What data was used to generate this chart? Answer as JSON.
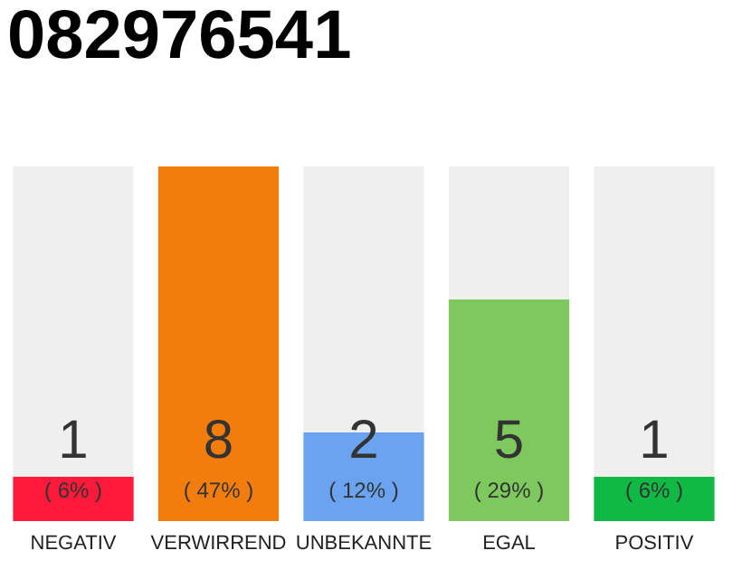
{
  "chart_data": {
    "type": "bar",
    "title": "082976541",
    "categories": [
      "NEGATIV",
      "VERWIRREND",
      "UNBEKANNTE",
      "EGAL",
      "POSITIV"
    ],
    "values": [
      1,
      8,
      2,
      5,
      1
    ],
    "colors": [
      "#ff1a3c",
      "#f27d0c",
      "#6aa3f0",
      "#7dc95e",
      "#10b943"
    ],
    "data_labels": true,
    "annotations": [
      "( 6% )",
      "( 47% )",
      "( 12% )",
      "( 29% )",
      "( 6% )"
    ],
    "tick_labels": "x"
  }
}
